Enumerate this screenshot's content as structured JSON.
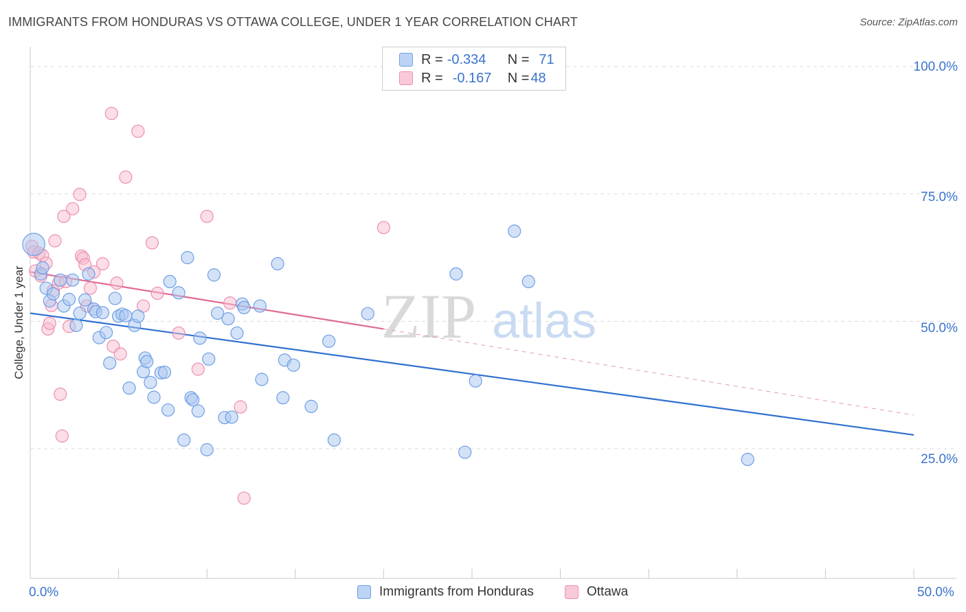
{
  "title": "IMMIGRANTS FROM HONDURAS VS OTTAWA COLLEGE, UNDER 1 YEAR CORRELATION CHART",
  "source": "Source: ZipAtlas.com",
  "watermark": {
    "zip": "ZIP",
    "atlas": "atlas"
  },
  "legend_top": {
    "rows": [
      {
        "r_label": "R = ",
        "r_value": "-0.334",
        "n_label": "N = ",
        "n_value": "71"
      },
      {
        "r_label": "R = ",
        "r_value": "-0.167",
        "n_label": "N = ",
        "n_value": "48"
      }
    ]
  },
  "colors": {
    "blue_fill": "#a9c6f0",
    "blue_stroke": "#6d9ee6",
    "blue_line": "#2f6fd0",
    "pink_fill": "#f7bdd0",
    "pink_stroke": "#ec8fb0",
    "pink_line": "#e06a92",
    "axis_label": "#3a73cc"
  },
  "chart_data": {
    "type": "scatter",
    "title": "IMMIGRANTS FROM HONDURAS VS OTTAWA COLLEGE, UNDER 1 YEAR CORRELATION CHART",
    "xlabel": "",
    "ylabel": "College, Under 1 year",
    "xlim": [
      0,
      50
    ],
    "ylim": [
      0,
      105
    ],
    "x_tick_labels": {
      "min": "0.0%",
      "max": "50.0%"
    },
    "y_ticks": [
      {
        "value": 100,
        "label": "100.0%"
      },
      {
        "value": 75,
        "label": "75.0%"
      },
      {
        "value": 50,
        "label": "50.0%"
      },
      {
        "value": 25,
        "label": "25.0%"
      }
    ],
    "series": [
      {
        "name": "Immigrants from Honduras",
        "color": "blue",
        "trend": {
          "x0": 0,
          "y0": 51.6,
          "x1": 50,
          "y1": 27.7,
          "dashed_to": null
        },
        "points": [
          [
            0.2,
            65.1,
            1.8
          ],
          [
            0.6,
            59.3,
            1
          ],
          [
            0.7,
            60.5,
            1
          ],
          [
            0.9,
            56.5,
            1
          ],
          [
            1.1,
            54.0,
            1
          ],
          [
            1.3,
            55.4,
            1
          ],
          [
            1.7,
            58.1,
            1
          ],
          [
            1.9,
            53.0,
            1
          ],
          [
            2.2,
            54.3,
            1
          ],
          [
            2.4,
            58.1,
            1
          ],
          [
            2.6,
            49.2,
            1
          ],
          [
            2.8,
            51.6,
            1
          ],
          [
            3.1,
            54.2,
            1
          ],
          [
            3.3,
            59.3,
            1
          ],
          [
            3.6,
            52.4,
            1
          ],
          [
            3.7,
            51.9,
            1
          ],
          [
            3.9,
            46.8,
            1
          ],
          [
            4.1,
            51.7,
            1
          ],
          [
            4.3,
            47.8,
            1
          ],
          [
            4.5,
            41.8,
            1
          ],
          [
            4.8,
            54.5,
            1
          ],
          [
            5.0,
            51.0,
            1
          ],
          [
            5.2,
            51.4,
            1
          ],
          [
            5.4,
            51.1,
            1
          ],
          [
            5.6,
            36.9,
            1
          ],
          [
            5.9,
            49.2,
            1
          ],
          [
            6.1,
            51.0,
            1
          ],
          [
            6.4,
            40.1,
            1
          ],
          [
            6.5,
            42.8,
            1
          ],
          [
            6.6,
            42.1,
            1
          ],
          [
            6.8,
            38.0,
            1
          ],
          [
            7.0,
            35.1,
            1
          ],
          [
            7.4,
            39.9,
            1
          ],
          [
            7.6,
            40.0,
            1
          ],
          [
            7.8,
            32.6,
            1
          ],
          [
            7.9,
            57.8,
            1
          ],
          [
            8.4,
            55.6,
            1
          ],
          [
            8.7,
            26.7,
            1
          ],
          [
            8.9,
            62.5,
            1
          ],
          [
            9.1,
            35.0,
            1
          ],
          [
            9.2,
            34.6,
            1
          ],
          [
            9.5,
            32.4,
            1
          ],
          [
            9.6,
            46.7,
            1
          ],
          [
            10.0,
            24.8,
            1
          ],
          [
            10.1,
            42.6,
            1
          ],
          [
            10.4,
            59.1,
            1
          ],
          [
            10.6,
            51.6,
            1
          ],
          [
            11.0,
            31.1,
            1
          ],
          [
            11.2,
            50.5,
            1
          ],
          [
            11.4,
            31.2,
            1
          ],
          [
            11.7,
            47.7,
            1
          ],
          [
            12.0,
            53.4,
            1
          ],
          [
            12.1,
            52.7,
            1
          ],
          [
            13.0,
            53.0,
            1
          ],
          [
            13.1,
            38.6,
            1
          ],
          [
            14.0,
            61.3,
            1
          ],
          [
            14.3,
            35.0,
            1
          ],
          [
            14.4,
            42.4,
            1
          ],
          [
            14.9,
            41.4,
            1
          ],
          [
            15.9,
            33.3,
            1
          ],
          [
            16.9,
            46.1,
            1
          ],
          [
            17.2,
            26.7,
            1
          ],
          [
            19.1,
            51.5,
            1
          ],
          [
            24.1,
            59.3,
            1
          ],
          [
            24.6,
            24.3,
            1
          ],
          [
            25.2,
            38.3,
            1
          ],
          [
            27.4,
            67.7,
            1
          ],
          [
            28.2,
            57.8,
            1
          ],
          [
            40.6,
            22.9,
            1
          ]
        ]
      },
      {
        "name": "Ottawa",
        "color": "pink",
        "trend": {
          "x0": 0,
          "y0": 59.7,
          "x1": 20,
          "y1": 48.5,
          "dashed_to": {
            "x": 50,
            "y": 31.6
          }
        },
        "points": [
          [
            0.1,
            64.7,
            1
          ],
          [
            0.2,
            63.6,
            1
          ],
          [
            0.3,
            59.9,
            1
          ],
          [
            0.5,
            63.4,
            1
          ],
          [
            0.6,
            58.9,
            1
          ],
          [
            0.7,
            62.9,
            1
          ],
          [
            0.9,
            61.4,
            1
          ],
          [
            1.0,
            48.5,
            1
          ],
          [
            1.1,
            49.6,
            1
          ],
          [
            1.2,
            53.1,
            1
          ],
          [
            1.3,
            56.0,
            1
          ],
          [
            1.4,
            65.8,
            1
          ],
          [
            1.6,
            57.5,
            1
          ],
          [
            1.7,
            35.7,
            1
          ],
          [
            1.8,
            27.5,
            1
          ],
          [
            1.9,
            70.6,
            1
          ],
          [
            2.0,
            57.8,
            1
          ],
          [
            2.2,
            49.0,
            1
          ],
          [
            2.4,
            72.1,
            1
          ],
          [
            2.8,
            74.9,
            1
          ],
          [
            2.9,
            62.8,
            1
          ],
          [
            3.0,
            62.4,
            1
          ],
          [
            3.1,
            61.1,
            1
          ],
          [
            3.2,
            53.0,
            1
          ],
          [
            3.4,
            56.5,
            1
          ],
          [
            3.6,
            59.7,
            1
          ],
          [
            4.1,
            61.3,
            1
          ],
          [
            4.6,
            90.8,
            1
          ],
          [
            4.7,
            45.1,
            1
          ],
          [
            4.9,
            57.5,
            1
          ],
          [
            5.1,
            43.6,
            1
          ],
          [
            5.4,
            78.3,
            1
          ],
          [
            6.1,
            87.3,
            1
          ],
          [
            6.4,
            53.0,
            1
          ],
          [
            6.9,
            65.4,
            1
          ],
          [
            7.2,
            55.5,
            1
          ],
          [
            8.4,
            47.7,
            1
          ],
          [
            9.5,
            40.6,
            1
          ],
          [
            10.0,
            70.6,
            1
          ],
          [
            11.3,
            53.6,
            1
          ],
          [
            11.9,
            33.2,
            1
          ],
          [
            12.1,
            15.3,
            1
          ],
          [
            20.0,
            68.4,
            1
          ]
        ]
      }
    ]
  },
  "legend_bottom": {
    "items": [
      "Immigrants from Honduras",
      "Ottawa"
    ]
  }
}
